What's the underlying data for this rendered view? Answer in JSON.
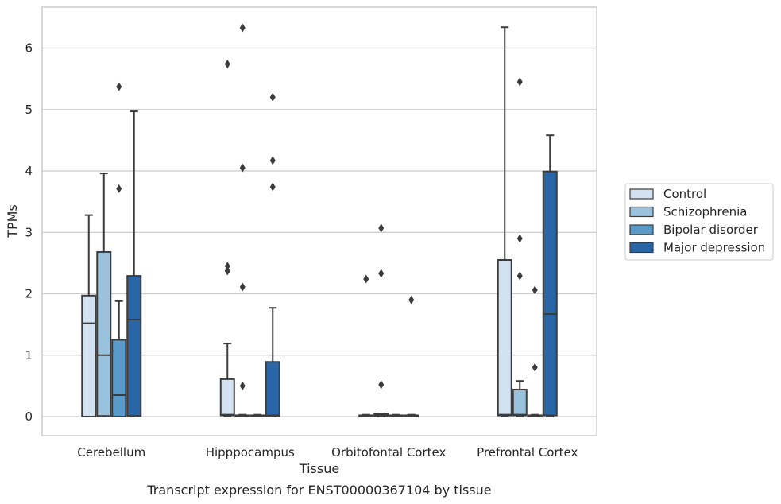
{
  "chart_data": {
    "type": "boxplot",
    "caption": "Transcript expression for ENST00000367104 by tissue",
    "xlabel": "Tissue",
    "ylabel": "TPMs",
    "ylim": [
      -0.3,
      6.5
    ],
    "yticks": [
      0,
      1,
      2,
      3,
      4,
      5,
      6
    ],
    "grid": "horizontal",
    "legend_position": "right",
    "categories": [
      "Cerebellum",
      "Hipppocampus",
      "Orbitofontal Cortex",
      "Prefrontal Cortex"
    ],
    "series": [
      {
        "name": "Control",
        "color": "#d2e2f1",
        "boxes": [
          {
            "min": 0,
            "q1": 0,
            "median": 1.52,
            "q3": 1.97,
            "max": 3.28,
            "outliers": []
          },
          {
            "min": 0,
            "q1": 0.02,
            "median": 0.03,
            "q3": 0.61,
            "max": 1.19,
            "outliers": [
              2.37,
              2.45,
              5.74
            ]
          },
          {
            "min": 0,
            "q1": 0,
            "median": 0.01,
            "q3": 0.02,
            "max": 0.03,
            "outliers": [
              2.24
            ]
          },
          {
            "min": 0,
            "q1": 0.02,
            "median": 0.03,
            "q3": 2.55,
            "max": 6.34,
            "outliers": []
          }
        ]
      },
      {
        "name": "Schizophrenia",
        "color": "#9ac2dd",
        "boxes": [
          {
            "min": 0,
            "q1": 0.01,
            "median": 1.0,
            "q3": 2.68,
            "max": 3.96,
            "outliers": []
          },
          {
            "min": 0,
            "q1": 0,
            "median": 0.01,
            "q3": 0.02,
            "max": 0.03,
            "outliers": [
              0.5,
              2.11,
              4.05,
              6.33
            ]
          },
          {
            "min": 0,
            "q1": 0.01,
            "median": 0.02,
            "q3": 0.04,
            "max": 0.05,
            "outliers": [
              0.52,
              2.33,
              3.07
            ]
          },
          {
            "min": 0,
            "q1": 0.02,
            "median": 0.03,
            "q3": 0.44,
            "max": 0.58,
            "outliers": [
              2.29,
              2.9,
              5.45
            ]
          }
        ]
      },
      {
        "name": "Bipolar disorder",
        "color": "#5a9ac9",
        "boxes": [
          {
            "min": 0,
            "q1": 0,
            "median": 0.35,
            "q3": 1.25,
            "max": 1.88,
            "outliers": [
              3.71,
              5.37
            ]
          },
          {
            "min": 0,
            "q1": 0,
            "median": 0.01,
            "q3": 0.02,
            "max": 0.03,
            "outliers": []
          },
          {
            "min": 0,
            "q1": 0,
            "median": 0.01,
            "q3": 0.02,
            "max": 0.03,
            "outliers": []
          },
          {
            "min": 0,
            "q1": 0,
            "median": 0.01,
            "q3": 0.02,
            "max": 0.03,
            "outliers": [
              0.8,
              2.06
            ]
          }
        ]
      },
      {
        "name": "Major depression",
        "color": "#2966a7",
        "boxes": [
          {
            "min": 0,
            "q1": 0.01,
            "median": 1.58,
            "q3": 2.29,
            "max": 4.97,
            "outliers": []
          },
          {
            "min": 0,
            "q1": 0.01,
            "median": 0.02,
            "q3": 0.89,
            "max": 1.77,
            "outliers": [
              3.74,
              4.17,
              5.2
            ]
          },
          {
            "min": 0,
            "q1": 0,
            "median": 0.01,
            "q3": 0.02,
            "max": 0.03,
            "outliers": [
              1.9
            ]
          },
          {
            "min": 0,
            "q1": 0.02,
            "median": 1.67,
            "q3": 3.99,
            "max": 4.58,
            "outliers": []
          }
        ]
      }
    ]
  }
}
